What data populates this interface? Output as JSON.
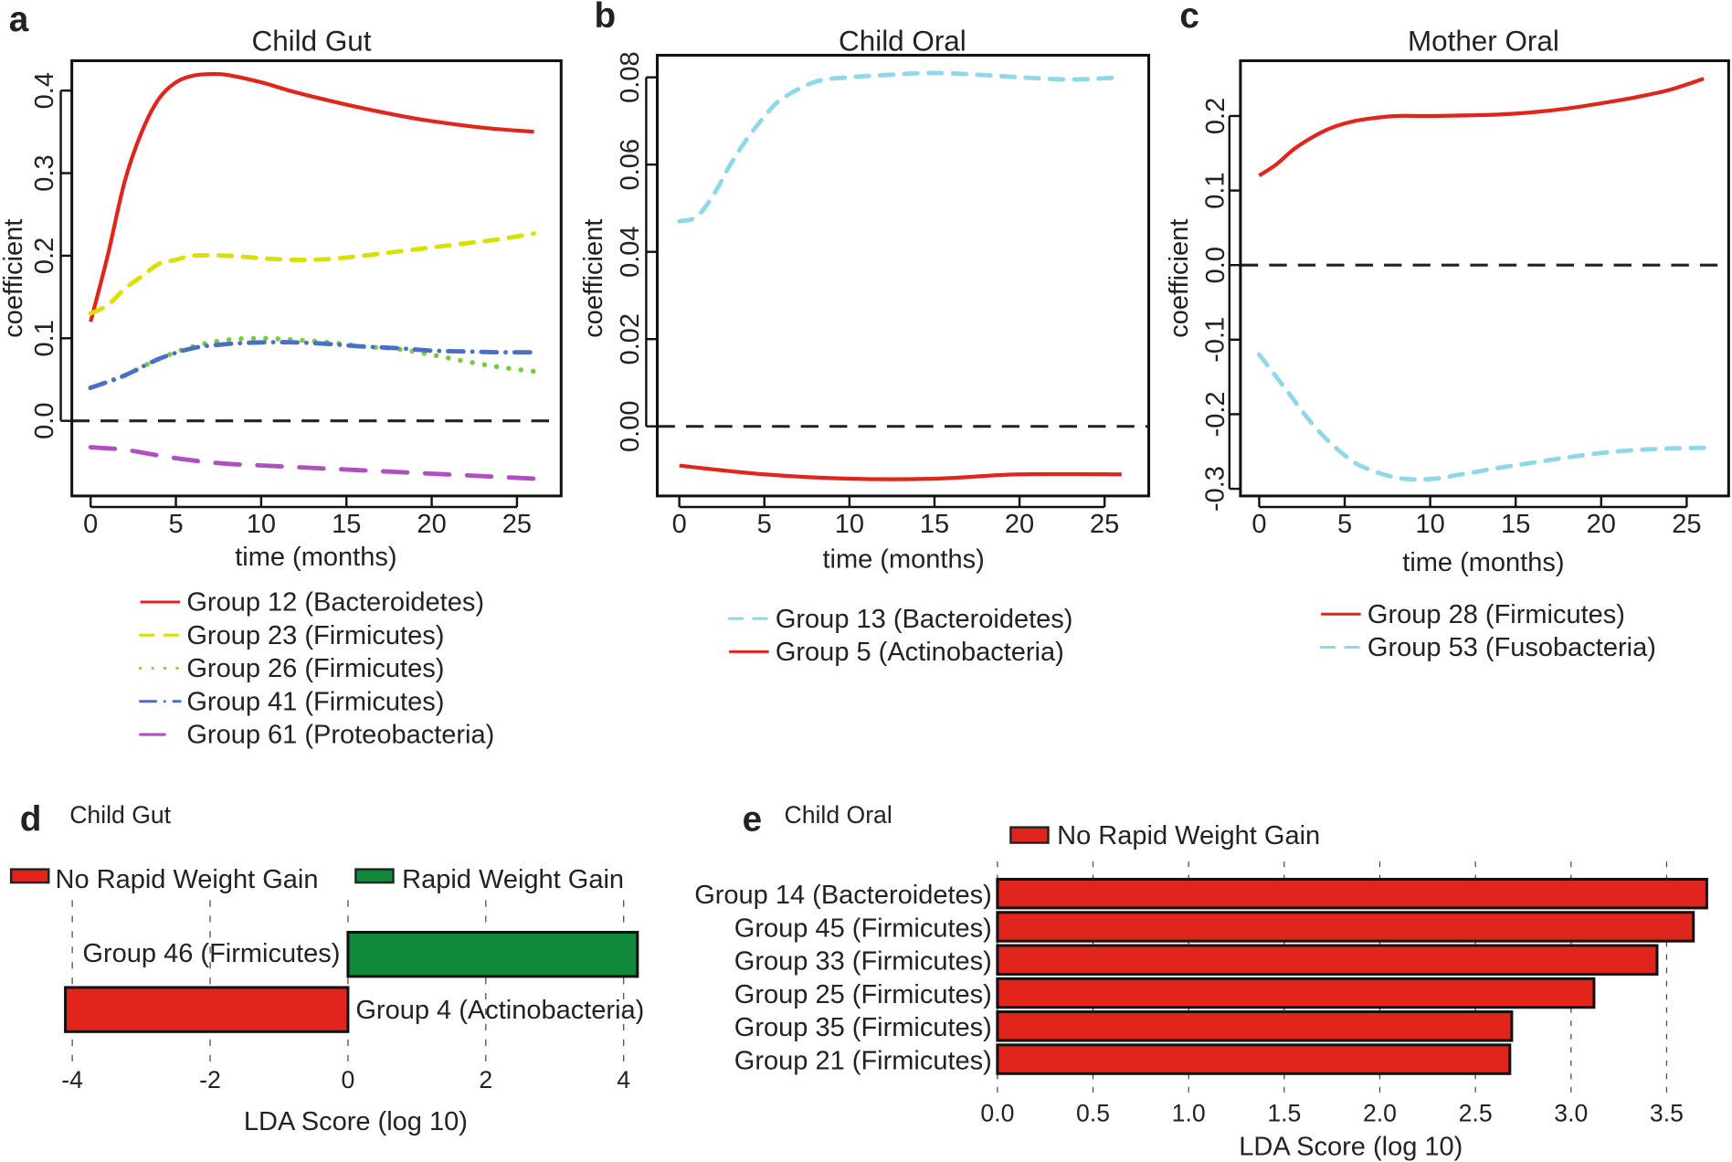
{
  "colors": {
    "red": "#e0261c",
    "yellow": "#d9e000",
    "green": "#7ac943",
    "blue": "#4a6fc4",
    "purple": "#b04fc0",
    "lightblue": "#8fd8e8",
    "bar_green": "#108a3a",
    "bar_red": "#e0261c"
  },
  "chart_data": [
    {
      "panel": "a",
      "type": "line",
      "title": "Child Gut",
      "xlabel": "time (months)",
      "ylabel": "coefficient",
      "xlim": [
        0,
        26
      ],
      "ylim": [
        -0.07,
        0.42
      ],
      "xticks": [
        0,
        5,
        10,
        15,
        20,
        25
      ],
      "yticks": [
        "0.0",
        "0.1",
        "0.2",
        "0.3",
        "0.4"
      ],
      "reference_line": 0,
      "legend_placement": "below",
      "series": [
        {
          "name": "Group 12 (Bacteroidetes)",
          "style": "solid",
          "color": "red",
          "x": [
            0,
            1,
            2,
            3,
            4,
            5,
            6,
            7,
            8,
            10,
            12,
            15,
            18,
            20,
            23,
            26
          ],
          "y": [
            0.12,
            0.2,
            0.29,
            0.35,
            0.39,
            0.41,
            0.418,
            0.42,
            0.419,
            0.41,
            0.398,
            0.383,
            0.37,
            0.363,
            0.355,
            0.35
          ]
        },
        {
          "name": "Group 23 (Firmicutes)",
          "style": "dashed",
          "color": "yellow",
          "x": [
            0,
            1,
            2,
            3,
            4,
            5,
            6,
            8,
            10,
            12,
            14,
            16,
            18,
            20,
            22,
            24,
            26
          ],
          "y": [
            0.13,
            0.14,
            0.16,
            0.175,
            0.19,
            0.195,
            0.2,
            0.2,
            0.197,
            0.195,
            0.196,
            0.2,
            0.205,
            0.21,
            0.215,
            0.22,
            0.227
          ]
        },
        {
          "name": "Group 26 (Firmicutes)",
          "style": "dotted",
          "color": "green",
          "x": [
            0,
            2,
            4,
            6,
            8,
            10,
            12,
            14,
            16,
            18,
            20,
            22,
            24,
            26
          ],
          "y": [
            0.04,
            0.055,
            0.075,
            0.09,
            0.098,
            0.1,
            0.098,
            0.095,
            0.09,
            0.087,
            0.08,
            0.072,
            0.065,
            0.06
          ]
        },
        {
          "name": "Group 41 (Firmicutes)",
          "style": "dotdash",
          "color": "blue",
          "x": [
            0,
            2,
            4,
            6,
            8,
            10,
            12,
            14,
            16,
            18,
            20,
            22,
            24,
            26
          ],
          "y": [
            0.04,
            0.055,
            0.075,
            0.088,
            0.093,
            0.095,
            0.095,
            0.093,
            0.09,
            0.088,
            0.085,
            0.084,
            0.083,
            0.083
          ]
        },
        {
          "name": "Group 61 (Proteobacteria)",
          "style": "longdash",
          "color": "purple",
          "x": [
            0,
            2,
            4,
            6,
            8,
            10,
            12,
            14,
            16,
            18,
            20,
            22,
            24,
            26
          ],
          "y": [
            -0.032,
            -0.035,
            -0.042,
            -0.048,
            -0.052,
            -0.054,
            -0.056,
            -0.058,
            -0.06,
            -0.062,
            -0.064,
            -0.066,
            -0.068,
            -0.07
          ]
        }
      ]
    },
    {
      "panel": "b",
      "type": "line",
      "title": "Child Oral",
      "xlabel": "time (months)",
      "ylabel": "coefficient",
      "xlim": [
        0,
        26
      ],
      "ylim": [
        -0.012,
        0.081
      ],
      "xticks": [
        0,
        5,
        10,
        15,
        20,
        25
      ],
      "yticks": [
        "0.00",
        "0.02",
        "0.04",
        "0.06",
        "0.08"
      ],
      "reference_line": 0,
      "legend_placement": "below",
      "series": [
        {
          "name": "Group 13 (Bacteroidetes)",
          "style": "dashed",
          "color": "lightblue",
          "x": [
            0,
            1,
            2,
            3,
            4,
            5,
            6,
            8,
            10,
            12,
            15,
            18,
            20,
            23,
            26
          ],
          "y": [
            0.047,
            0.048,
            0.053,
            0.06,
            0.066,
            0.071,
            0.075,
            0.079,
            0.08,
            0.0805,
            0.081,
            0.0805,
            0.08,
            0.0795,
            0.08
          ]
        },
        {
          "name": "Group 5   (Actinobacteria)",
          "style": "solid",
          "color": "red",
          "x": [
            0,
            5,
            10,
            15,
            20,
            26
          ],
          "y": [
            -0.009,
            -0.011,
            -0.012,
            -0.012,
            -0.011,
            -0.011
          ]
        }
      ]
    },
    {
      "panel": "c",
      "type": "line",
      "title": "Mother Oral",
      "xlabel": "time (months)",
      "ylabel": "coefficient",
      "xlim": [
        0,
        26
      ],
      "ylim": [
        -0.3,
        0.25
      ],
      "xticks": [
        0,
        5,
        10,
        15,
        20,
        25
      ],
      "yticks": [
        "-0.3",
        "-0.2",
        "-0.1",
        "0.0",
        "0.1",
        "0.2"
      ],
      "reference_line": 0,
      "legend_placement": "below",
      "series": [
        {
          "name": "Group 28 (Firmicutes)",
          "style": "solid",
          "color": "red",
          "x": [
            0,
            1,
            2,
            3,
            4,
            5,
            6,
            8,
            10,
            14,
            16,
            18,
            20,
            22,
            24,
            26
          ],
          "y": [
            0.12,
            0.135,
            0.155,
            0.17,
            0.182,
            0.19,
            0.195,
            0.2,
            0.2,
            0.202,
            0.205,
            0.21,
            0.217,
            0.225,
            0.235,
            0.25
          ]
        },
        {
          "name": "Group 53 (Fusobacteria)",
          "style": "dashed",
          "color": "lightblue",
          "x": [
            0,
            1,
            2,
            3,
            4,
            5,
            6,
            8,
            10,
            12,
            14,
            16,
            18,
            20,
            22,
            24,
            26
          ],
          "y": [
            -0.12,
            -0.15,
            -0.18,
            -0.21,
            -0.235,
            -0.255,
            -0.27,
            -0.285,
            -0.287,
            -0.28,
            -0.272,
            -0.265,
            -0.258,
            -0.252,
            -0.248,
            -0.246,
            -0.245
          ]
        }
      ]
    },
    {
      "panel": "d",
      "type": "bar",
      "orientation": "horizontal",
      "title": "Child Gut",
      "xlabel": "LDA Score (log 10)",
      "xlim": [
        -4,
        4
      ],
      "xticks": [
        "-4",
        "-2",
        "0",
        "2",
        "4"
      ],
      "legend": [
        {
          "name": "No Rapid Weight Gain",
          "color": "bar_red"
        },
        {
          "name": "Rapid Weight Gain",
          "color": "bar_green"
        }
      ],
      "legend_placement": "top",
      "categories": [
        "Group 46 (Firmicutes)",
        "Group 4 (Actinobacteria)"
      ],
      "values": [
        4.2,
        -4.1
      ],
      "bar_colors": [
        "bar_green",
        "bar_red"
      ]
    },
    {
      "panel": "e",
      "type": "bar",
      "orientation": "horizontal",
      "title": "Child Oral",
      "xlabel": "LDA Score (log 10)",
      "xlim": [
        0,
        3.7
      ],
      "xticks": [
        "0.0",
        "0.5",
        "1.0",
        "1.5",
        "2.0",
        "2.5",
        "3.0",
        "3.5"
      ],
      "legend": [
        {
          "name": "No Rapid Weight Gain",
          "color": "bar_red"
        }
      ],
      "legend_placement": "top",
      "categories": [
        "Group 14 (Bacteroidetes)",
        "Group 45 (Firmicutes)",
        "Group 33 (Firmicutes)",
        "Group 25 (Firmicutes)",
        "Group 35 (Firmicutes)",
        "Group 21 (Firmicutes)"
      ],
      "values": [
        3.71,
        3.64,
        3.45,
        3.12,
        2.69,
        2.68
      ]
    }
  ]
}
